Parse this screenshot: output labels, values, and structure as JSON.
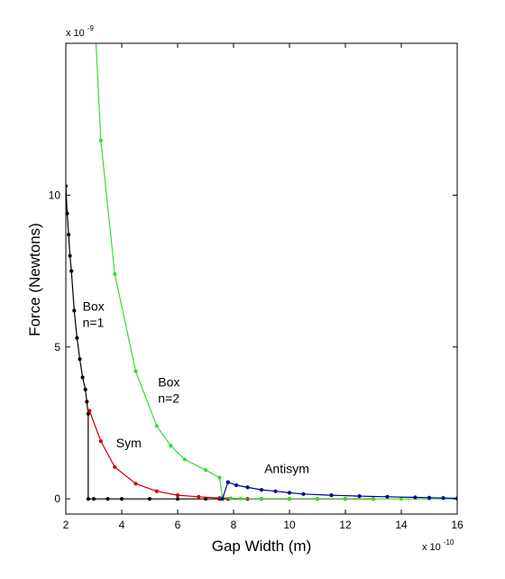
{
  "chart_data": {
    "type": "line",
    "xlabel": "Gap Width (m)",
    "ylabel": "Force (Newtons)",
    "x_multiplier_label": "x 10",
    "x_multiplier_exp": "-10",
    "y_multiplier_label": "x 10",
    "y_multiplier_exp": "-9",
    "xlim": [
      2,
      16
    ],
    "ylim": [
      -0.5,
      15
    ],
    "xticks": [
      2,
      4,
      6,
      8,
      10,
      12,
      14,
      16
    ],
    "yticks": [
      0,
      5,
      10
    ],
    "grid": false,
    "legend": "none",
    "annotations": [
      {
        "id": "box1",
        "lines": [
          "Box",
          "n=1"
        ],
        "x": 2.6,
        "y": 6.2
      },
      {
        "id": "box2",
        "lines": [
          "Box",
          "n=2"
        ],
        "x": 5.3,
        "y": 3.7
      },
      {
        "id": "sym",
        "lines": [
          "Sym"
        ],
        "x": 3.8,
        "y": 1.7
      },
      {
        "id": "antisym",
        "lines": [
          "Antisym"
        ],
        "x": 9.1,
        "y": 0.85
      }
    ],
    "series": [
      {
        "id": "box-n1",
        "color": "#000000",
        "x": [
          2.0,
          2.05,
          2.1,
          2.15,
          2.2,
          2.3,
          2.4,
          2.5,
          2.6,
          2.7,
          2.75,
          2.8,
          2.8,
          3.0,
          3.5,
          4.0,
          5.0,
          6.0,
          7.0,
          7.5,
          7.8,
          8.5,
          9.0,
          10.0,
          11.0,
          12.0,
          13.0
        ],
        "y": [
          10.3,
          9.4,
          8.7,
          8.0,
          7.5,
          6.2,
          5.3,
          4.6,
          4.0,
          3.6,
          3.2,
          2.8,
          0.0,
          0.0,
          0.0,
          0.0,
          0.0,
          0.0,
          0.0,
          0.0,
          0.0,
          0.0,
          0.0,
          0.0,
          0.0,
          0.0,
          0.0
        ]
      },
      {
        "id": "sym",
        "color": "#cc0000",
        "x": [
          2.85,
          3.25,
          3.75,
          4.5,
          5.25,
          6.0,
          6.75,
          7.5,
          7.8,
          8.5,
          9.0,
          10.0,
          11.0,
          12.0,
          13.0
        ],
        "y": [
          2.9,
          1.9,
          1.05,
          0.5,
          0.25,
          0.12,
          0.07,
          0.03,
          0.0,
          0.0,
          0.0,
          0.0,
          0.0,
          0.0,
          0.0
        ]
      },
      {
        "id": "box-n2",
        "color": "#33dd33",
        "x": [
          3.0,
          3.25,
          3.75,
          4.5,
          5.25,
          5.75,
          6.25,
          7.0,
          7.5,
          7.6,
          7.9,
          8.25,
          9.0,
          10.0,
          11.0,
          12.0,
          13.0,
          14.0,
          15.0,
          16.0
        ],
        "y": [
          16.5,
          11.8,
          7.4,
          4.2,
          2.4,
          1.75,
          1.3,
          0.95,
          0.7,
          0.05,
          0.02,
          0.01,
          0.0,
          0.0,
          0.0,
          0.0,
          0.0,
          0.0,
          0.0,
          0.0
        ]
      },
      {
        "id": "antisym",
        "color": "#000099",
        "x": [
          7.6,
          7.8,
          8.1,
          8.5,
          9.0,
          9.5,
          10.0,
          10.5,
          11.5,
          12.5,
          13.5,
          14.5,
          15.0,
          15.5,
          16.0
        ],
        "y": [
          0.0,
          0.55,
          0.45,
          0.38,
          0.3,
          0.25,
          0.2,
          0.16,
          0.12,
          0.09,
          0.07,
          0.05,
          0.04,
          0.03,
          0.02
        ]
      }
    ]
  }
}
